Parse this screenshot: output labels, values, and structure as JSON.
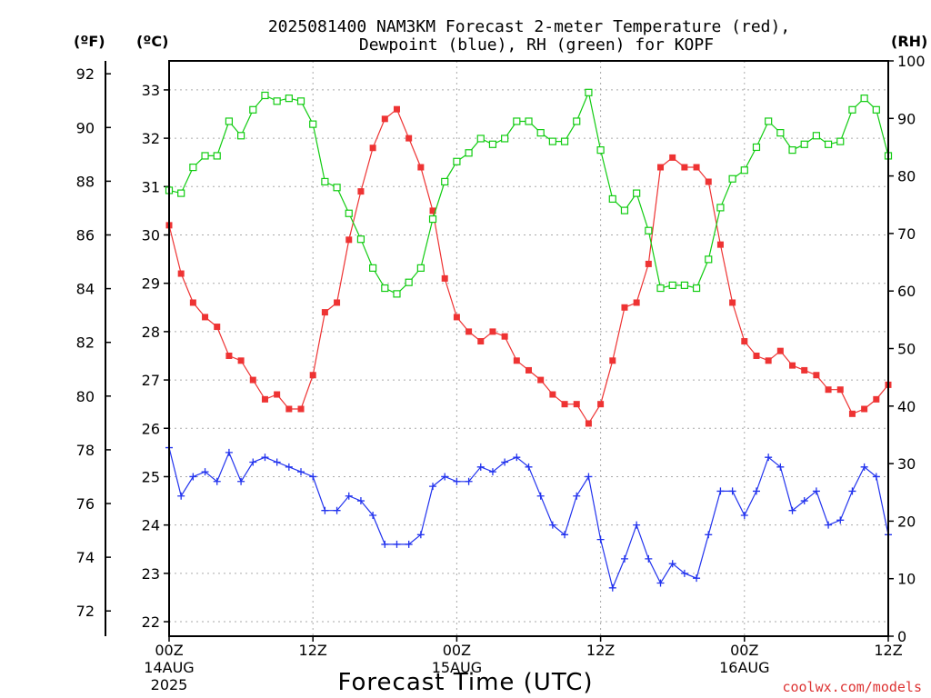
{
  "chart_data": {
    "type": "line",
    "title_line1": "2025081400 NAM3KM Forecast 2-meter Temperature (red),",
    "title_line2": "Dewpoint (blue), RH (green) for KOPF",
    "xlabel": "Forecast Time (UTC)",
    "credit": "coolwx.com/models",
    "units": {
      "fahrenheit": "(ºF)",
      "celsius": "(ºC)",
      "rh": "(RH)"
    },
    "x_range_hours": [
      0,
      60
    ],
    "x_ticks": [
      {
        "hour": 0,
        "line1": "00Z",
        "line2": "14AUG",
        "line3": "2025"
      },
      {
        "hour": 12,
        "line1": "12Z",
        "line2": "",
        "line3": ""
      },
      {
        "hour": 24,
        "line1": "00Z",
        "line2": "15AUG",
        "line3": ""
      },
      {
        "hour": 36,
        "line1": "12Z",
        "line2": "",
        "line3": ""
      },
      {
        "hour": 48,
        "line1": "00Z",
        "line2": "16AUG",
        "line3": ""
      },
      {
        "hour": 60,
        "line1": "12Z",
        "line2": "",
        "line3": ""
      }
    ],
    "celsius_axis": {
      "range": [
        21.7,
        33.6
      ],
      "ticks": [
        "22",
        "23",
        "24",
        "25",
        "26",
        "27",
        "28",
        "29",
        "30",
        "31",
        "32",
        "33"
      ]
    },
    "fahrenheit_axis": {
      "ticks": [
        "72",
        "74",
        "76",
        "78",
        "80",
        "82",
        "84",
        "86",
        "88",
        "90",
        "92"
      ]
    },
    "rh_axis": {
      "range": [
        0,
        100
      ],
      "ticks": [
        "0",
        "10",
        "20",
        "30",
        "40",
        "50",
        "60",
        "70",
        "80",
        "90",
        "100"
      ]
    },
    "grid": true,
    "x_hours": [
      0,
      1,
      2,
      3,
      4,
      5,
      6,
      7,
      8,
      9,
      10,
      11,
      12,
      13,
      14,
      15,
      16,
      17,
      18,
      19,
      20,
      21,
      22,
      23,
      24,
      25,
      26,
      27,
      28,
      29,
      30,
      31,
      32,
      33,
      34,
      35,
      36,
      37,
      38,
      39,
      40,
      41,
      42,
      43,
      44,
      45,
      46,
      47,
      48,
      49,
      50,
      51,
      52,
      53,
      54,
      55,
      56,
      57,
      58,
      59,
      60
    ],
    "series": [
      {
        "name": "Temperature",
        "unit": "C",
        "color": "#ee3333",
        "marker": "filled-square",
        "values": [
          30.2,
          29.2,
          28.6,
          28.3,
          28.1,
          27.5,
          27.4,
          27.0,
          26.6,
          26.7,
          26.4,
          26.4,
          27.1,
          28.4,
          28.6,
          29.9,
          30.9,
          31.8,
          32.4,
          32.6,
          32.0,
          31.4,
          30.5,
          29.1,
          28.3,
          28.0,
          27.8,
          28.0,
          27.9,
          27.4,
          27.2,
          27.0,
          26.7,
          26.5,
          26.5,
          26.1,
          26.5,
          27.4,
          28.5,
          28.6,
          29.4,
          31.4,
          31.6,
          31.4,
          31.4,
          31.1,
          29.8,
          28.6,
          27.8,
          27.5,
          27.4,
          27.6,
          27.3,
          27.2,
          27.1,
          26.8,
          26.8,
          26.3,
          26.4,
          26.6,
          26.9
        ]
      },
      {
        "name": "Dewpoint",
        "unit": "C",
        "color": "#2233ee",
        "marker": "plus",
        "values": [
          25.6,
          24.6,
          25.0,
          25.1,
          24.9,
          25.5,
          24.9,
          25.3,
          25.4,
          25.3,
          25.2,
          25.1,
          25.0,
          24.3,
          24.3,
          24.6,
          24.5,
          24.2,
          23.6,
          23.6,
          23.6,
          23.8,
          24.8,
          25.0,
          24.9,
          24.9,
          25.2,
          25.1,
          25.3,
          25.4,
          25.2,
          24.6,
          24.0,
          23.8,
          24.6,
          25.0,
          23.7,
          22.7,
          23.3,
          24.0,
          23.3,
          22.8,
          23.2,
          23.0,
          22.9,
          23.8,
          24.7,
          24.7,
          24.2,
          24.7,
          25.4,
          25.2,
          24.3,
          24.5,
          24.7,
          24.0,
          24.1,
          24.7,
          25.2,
          25.0,
          23.8
        ]
      },
      {
        "name": "RH",
        "unit": "%",
        "color": "#11cc11",
        "marker": "open-square",
        "values": [
          77.5,
          77.0,
          81.5,
          83.5,
          83.5,
          89.5,
          87.0,
          91.5,
          94.0,
          93.0,
          93.5,
          93.0,
          89.0,
          79.0,
          78.0,
          73.5,
          69.0,
          64.0,
          60.5,
          59.5,
          61.5,
          64.0,
          72.5,
          79.0,
          82.5,
          84.0,
          86.5,
          85.5,
          86.5,
          89.5,
          89.5,
          87.5,
          86.0,
          86.0,
          89.5,
          94.5,
          84.5,
          76.0,
          74.0,
          77.0,
          70.5,
          60.5,
          61.0,
          61.0,
          60.5,
          65.5,
          74.5,
          79.5,
          81.0,
          85.0,
          89.5,
          87.5,
          84.5,
          85.5,
          87.0,
          85.5,
          86.0,
          91.5,
          93.5,
          91.5,
          83.5
        ]
      }
    ]
  }
}
